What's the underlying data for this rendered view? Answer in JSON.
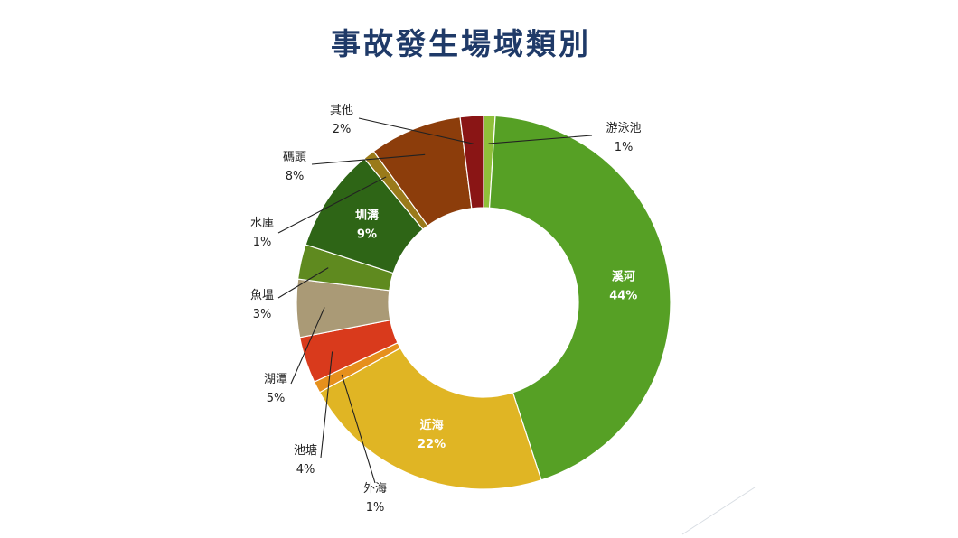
{
  "chart_data": {
    "type": "pie",
    "title": "事故發生場域類別",
    "donut": true,
    "slices": [
      {
        "name": "游泳池",
        "value": 1,
        "label": "1%",
        "color": "#8fc03a",
        "label_pos": "outside"
      },
      {
        "name": "溪河",
        "value": 44,
        "label": "44%",
        "color": "#56a025",
        "label_pos": "inside"
      },
      {
        "name": "近海",
        "value": 22,
        "label": "22%",
        "color": "#e0b524",
        "label_pos": "inside"
      },
      {
        "name": "外海",
        "value": 1,
        "label": "1%",
        "color": "#e6901c",
        "label_pos": "outside"
      },
      {
        "name": "池塘",
        "value": 4,
        "label": "4%",
        "color": "#d93a1c",
        "label_pos": "outside"
      },
      {
        "name": "湖潭",
        "value": 5,
        "label": "5%",
        "color": "#aa9a76",
        "label_pos": "outside"
      },
      {
        "name": "魚塭",
        "value": 3,
        "label": "3%",
        "color": "#5f8a1f",
        "label_pos": "outside"
      },
      {
        "name": "圳溝",
        "value": 9,
        "label": "9%",
        "color": "#2e6516",
        "label_pos": "inside"
      },
      {
        "name": "水庫",
        "value": 1,
        "label": "1%",
        "color": "#9a7a1a",
        "label_pos": "outside"
      },
      {
        "name": "碼頭",
        "value": 8,
        "label": "8%",
        "color": "#8c3d0b",
        "label_pos": "outside"
      },
      {
        "name": "其他",
        "value": 2,
        "label": "2%",
        "color": "#8a1515",
        "label_pos": "outside"
      }
    ]
  }
}
